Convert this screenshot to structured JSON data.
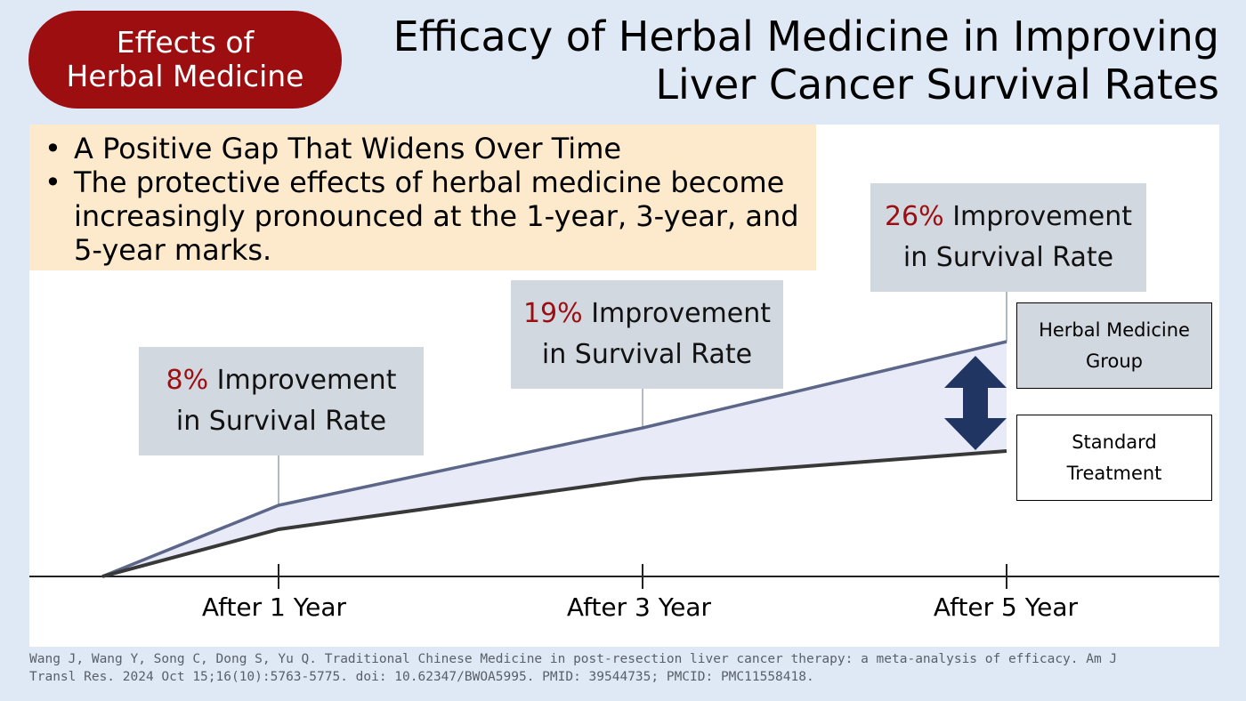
{
  "badge": {
    "line1": "Effects of",
    "line2": "Herbal Medicine"
  },
  "title": {
    "line1": "Efficacy of Herbal Medicine in Improving",
    "line2": "Liver Cancer Survival Rates"
  },
  "bullets": [
    "A Positive Gap That Widens Over Time",
    "The protective effects of herbal medicine become increasingly pronounced at the 1-year, 3-year, and 5-year marks."
  ],
  "callouts": [
    {
      "pct": "8%",
      "text1": " Improvement",
      "text2": "in Survival Rate"
    },
    {
      "pct": "19%",
      "text1": " Improvement",
      "text2": "in Survival Rate"
    },
    {
      "pct": "26%",
      "text1": " Improvement",
      "text2": "in Survival Rate"
    }
  ],
  "legend": {
    "herbal": {
      "line1": "Herbal Medicine",
      "line2": "Group"
    },
    "standard": {
      "line1": "Standard",
      "line2": "Treatment"
    }
  },
  "chart_data": {
    "type": "area",
    "categories": [
      "After 1 Year",
      "After 3 Year",
      "After 5 Year"
    ],
    "series": [
      {
        "name": "Herbal Medicine Group"
      },
      {
        "name": "Standard Treatment"
      }
    ],
    "improvement": [
      "8%",
      "19%",
      "26%"
    ],
    "colors": {
      "herbal_line": "#5c6688",
      "standard_line": "#383838",
      "gap_fill": "#e8ebf7",
      "arrow": "#203562"
    }
  },
  "citation": {
    "line1": "Wang J, Wang Y, Song C, Dong S, Yu Q. Traditional Chinese Medicine in post-resection liver cancer therapy: a meta-analysis of efficacy. Am J",
    "line2": "Transl Res. 2024 Oct 15;16(10):5763-5775. doi: 10.62347/BWOA5995. PMID: 39544735; PMCID: PMC11558418."
  }
}
